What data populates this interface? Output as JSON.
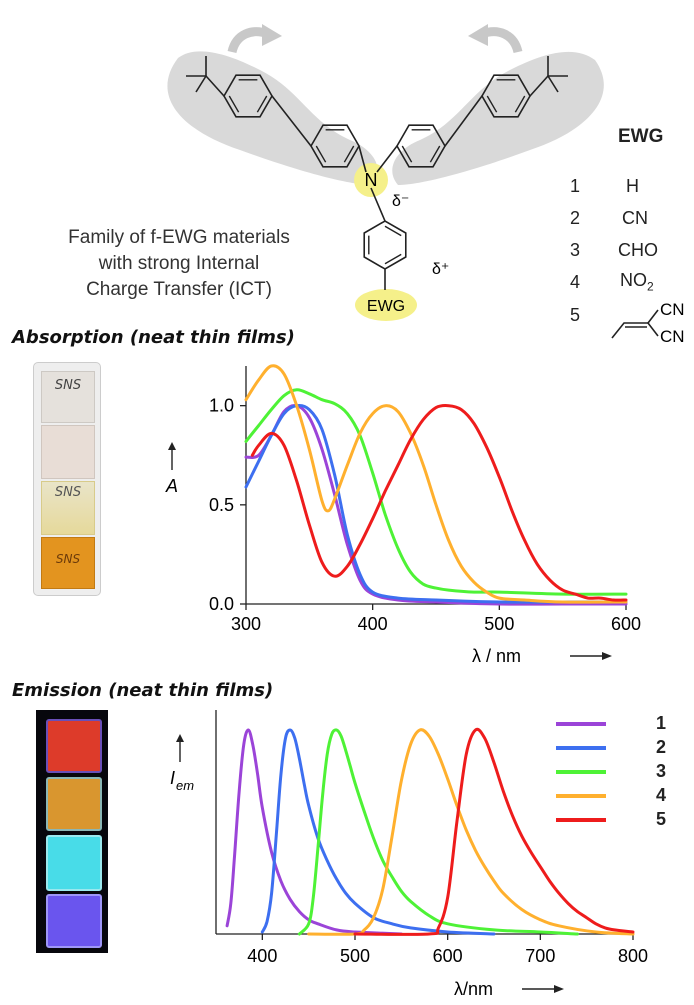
{
  "molecule": {
    "caption_lines": [
      "Family of f-EWG materials",
      "with strong Internal",
      "Charge Transfer (ICT)"
    ],
    "n_label": "N",
    "delta_minus": "δ⁻",
    "delta_plus": "δ⁺",
    "ewg_label": "EWG",
    "colors": {
      "lobe": "#d9d9d9",
      "highlight": "#f5f08a",
      "bond": "#222222",
      "arrow": "#c8c8c8"
    }
  },
  "ewg_table": {
    "header": "EWG",
    "rows": [
      {
        "num": "1",
        "group": "H"
      },
      {
        "num": "2",
        "group": "CN"
      },
      {
        "num": "3",
        "group": "CHO"
      },
      {
        "num": "4",
        "group": "NO2"
      },
      {
        "num": "5",
        "group": "CN CN"
      }
    ],
    "no2_main": "NO",
    "no2_sub": "2",
    "cn_top": "CN",
    "cn_bottom": "CN"
  },
  "absorption": {
    "section_title": "Absorption (neat thin films)",
    "photo_label": "SNS",
    "ylabel": "A",
    "xlabel": "λ / nm"
  },
  "emission": {
    "section_title": "Emission (neat thin films)",
    "ylabel": "I",
    "ylabel_sub": "em",
    "xlabel": "λ/nm"
  },
  "legend": [
    {
      "label": "1",
      "color": "#9b44d8"
    },
    {
      "label": "2",
      "color": "#3d6ff0"
    },
    {
      "label": "3",
      "color": "#4ef236"
    },
    {
      "label": "4",
      "color": "#ffb02e"
    },
    {
      "label": "5",
      "color": "#ee1c1c"
    }
  ],
  "chart_data": [
    {
      "type": "line",
      "title": "Absorption (neat thin films)",
      "xlabel": "λ / nm",
      "ylabel": "A",
      "xlim": [
        300,
        600
      ],
      "ylim": [
        0,
        1.2
      ],
      "xticks": [
        300,
        400,
        500,
        600
      ],
      "yticks": [
        0.0,
        0.5,
        1.0
      ],
      "ytick_labels": [
        "0.0",
        "0.5",
        "1.0"
      ],
      "grid": false,
      "series": [
        {
          "name": "1",
          "color": "#9b44d8",
          "x": [
            300,
            310,
            320,
            330,
            340,
            350,
            360,
            370,
            380,
            390,
            400,
            420,
            450,
            500,
            550,
            600
          ],
          "y": [
            0.74,
            0.75,
            0.85,
            0.97,
            1.0,
            0.94,
            0.78,
            0.55,
            0.3,
            0.12,
            0.05,
            0.02,
            0.01,
            0.0,
            0.0,
            0.0
          ]
        },
        {
          "name": "2",
          "color": "#3d6ff0",
          "x": [
            300,
            310,
            320,
            330,
            340,
            350,
            360,
            370,
            380,
            390,
            400,
            420,
            450,
            500,
            550,
            600
          ],
          "y": [
            0.59,
            0.72,
            0.85,
            0.96,
            1.0,
            0.98,
            0.88,
            0.65,
            0.35,
            0.15,
            0.06,
            0.03,
            0.02,
            0.01,
            0.01,
            0.01
          ]
        },
        {
          "name": "3",
          "color": "#4ef236",
          "x": [
            300,
            310,
            320,
            330,
            340,
            350,
            360,
            370,
            380,
            390,
            400,
            410,
            420,
            430,
            440,
            450,
            460,
            480,
            500,
            550,
            600
          ],
          "y": [
            0.82,
            0.9,
            0.98,
            1.05,
            1.08,
            1.06,
            1.03,
            1.01,
            0.96,
            0.85,
            0.66,
            0.45,
            0.28,
            0.16,
            0.1,
            0.08,
            0.07,
            0.06,
            0.06,
            0.05,
            0.05
          ]
        },
        {
          "name": "4",
          "color": "#ffb02e",
          "x": [
            300,
            310,
            320,
            330,
            340,
            350,
            360,
            365,
            370,
            380,
            390,
            400,
            410,
            420,
            430,
            440,
            450,
            460,
            470,
            480,
            490,
            500,
            520,
            550,
            600
          ],
          "y": [
            1.03,
            1.13,
            1.2,
            1.16,
            1.0,
            0.78,
            0.52,
            0.47,
            0.53,
            0.7,
            0.86,
            0.96,
            1.0,
            0.97,
            0.86,
            0.7,
            0.5,
            0.32,
            0.19,
            0.11,
            0.06,
            0.03,
            0.02,
            0.01,
            0.01
          ]
        },
        {
          "name": "5",
          "color": "#ee1c1c",
          "x": [
            305,
            310,
            320,
            330,
            340,
            350,
            360,
            370,
            380,
            390,
            400,
            410,
            420,
            430,
            440,
            450,
            460,
            470,
            480,
            490,
            500,
            510,
            520,
            530,
            540,
            550,
            560,
            570,
            580,
            590,
            600
          ],
          "y": [
            0.75,
            0.8,
            0.86,
            0.8,
            0.62,
            0.4,
            0.21,
            0.14,
            0.19,
            0.3,
            0.43,
            0.57,
            0.7,
            0.83,
            0.93,
            0.99,
            1.0,
            0.98,
            0.91,
            0.79,
            0.64,
            0.47,
            0.32,
            0.2,
            0.12,
            0.07,
            0.05,
            0.03,
            0.03,
            0.02,
            0.02
          ]
        }
      ]
    },
    {
      "type": "line",
      "title": "Emission (neat thin films)",
      "xlabel": "λ/nm",
      "ylabel": "Iem",
      "xlim": [
        350,
        800
      ],
      "ylim": [
        0,
        1.0
      ],
      "xticks": [
        400,
        500,
        600,
        700,
        800
      ],
      "grid": false,
      "series": [
        {
          "name": "1",
          "color": "#9b44d8",
          "x": [
            362,
            366,
            370,
            375,
            380,
            385,
            390,
            395,
            400,
            410,
            420,
            430,
            440,
            450,
            460,
            480,
            500,
            550
          ],
          "y": [
            0.04,
            0.15,
            0.38,
            0.7,
            0.93,
            1.0,
            0.92,
            0.78,
            0.62,
            0.4,
            0.26,
            0.17,
            0.11,
            0.07,
            0.05,
            0.02,
            0.01,
            0.0
          ]
        },
        {
          "name": "2",
          "color": "#3d6ff0",
          "x": [
            400,
            405,
            410,
            415,
            420,
            425,
            430,
            435,
            440,
            445,
            450,
            460,
            470,
            480,
            490,
            500,
            520,
            540,
            560,
            600,
            650
          ],
          "y": [
            0.01,
            0.06,
            0.2,
            0.48,
            0.78,
            0.96,
            1.0,
            0.96,
            0.86,
            0.74,
            0.63,
            0.47,
            0.36,
            0.27,
            0.2,
            0.15,
            0.08,
            0.05,
            0.03,
            0.01,
            0.0
          ]
        },
        {
          "name": "3",
          "color": "#4ef236",
          "x": [
            440,
            450,
            455,
            460,
            465,
            470,
            475,
            480,
            485,
            490,
            495,
            500,
            510,
            520,
            530,
            540,
            550,
            560,
            580,
            600,
            650,
            700,
            740
          ],
          "y": [
            0.0,
            0.05,
            0.18,
            0.42,
            0.68,
            0.88,
            0.98,
            1.0,
            0.97,
            0.9,
            0.82,
            0.74,
            0.6,
            0.47,
            0.36,
            0.28,
            0.21,
            0.16,
            0.09,
            0.05,
            0.02,
            0.01,
            0.0
          ]
        },
        {
          "name": "4",
          "color": "#ffb02e",
          "x": [
            450,
            500,
            510,
            520,
            530,
            540,
            550,
            560,
            570,
            580,
            590,
            600,
            610,
            620,
            630,
            640,
            650,
            660,
            680,
            700,
            720,
            760,
            800
          ],
          "y": [
            0.0,
            0.0,
            0.02,
            0.08,
            0.22,
            0.48,
            0.75,
            0.93,
            1.0,
            0.97,
            0.88,
            0.76,
            0.63,
            0.51,
            0.41,
            0.33,
            0.26,
            0.2,
            0.12,
            0.07,
            0.04,
            0.01,
            0.0
          ]
        },
        {
          "name": "5",
          "color": "#ee1c1c",
          "x": [
            500,
            580,
            590,
            600,
            610,
            620,
            630,
            640,
            650,
            660,
            670,
            680,
            690,
            700,
            710,
            720,
            730,
            740,
            750,
            760,
            770,
            780,
            800
          ],
          "y": [
            0.0,
            0.0,
            0.03,
            0.18,
            0.55,
            0.88,
            1.0,
            0.96,
            0.84,
            0.7,
            0.58,
            0.48,
            0.4,
            0.33,
            0.26,
            0.2,
            0.15,
            0.11,
            0.08,
            0.05,
            0.03,
            0.02,
            0.01
          ]
        }
      ]
    }
  ]
}
